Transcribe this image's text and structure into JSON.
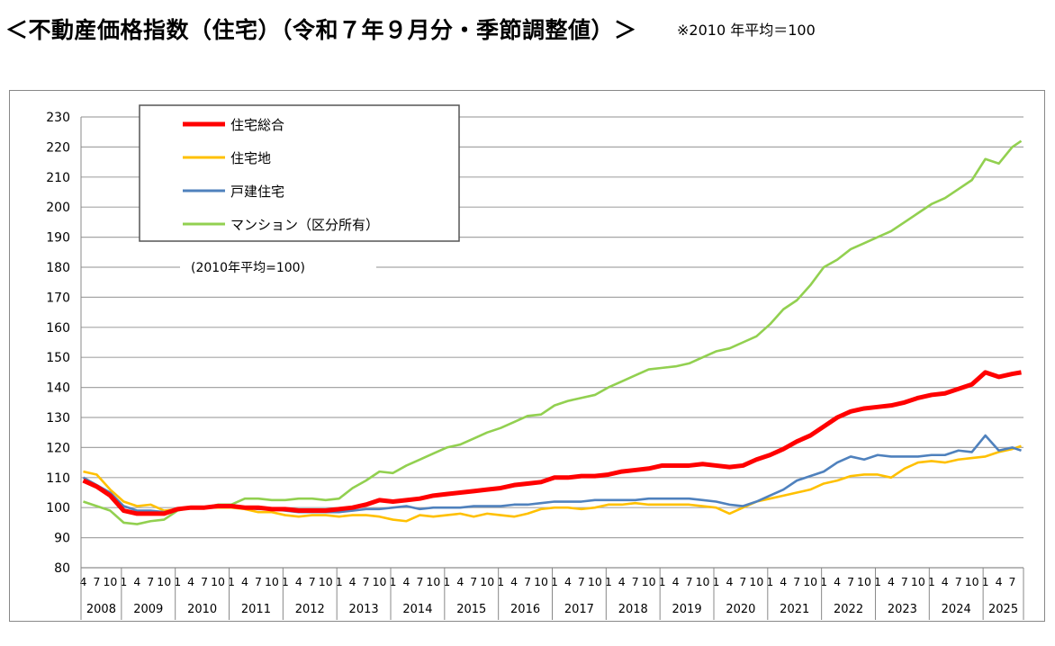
{
  "header": {
    "title": "＜不動産価格指数（住宅）（令和７年９月分・季節調整値）＞",
    "note": "※2010 年平均＝100"
  },
  "chart_data": {
    "type": "line",
    "title": "",
    "annotation": "(2010年平均=100)",
    "xlabel": "",
    "ylabel": "",
    "ylim": [
      80,
      230
    ],
    "y_ticks": [
      80,
      90,
      100,
      110,
      120,
      130,
      140,
      150,
      160,
      170,
      180,
      190,
      200,
      210,
      220,
      230
    ],
    "x_range": [
      "2008-04",
      "2025-09"
    ],
    "month_tick_labels": [
      "1",
      "4",
      "7",
      "10"
    ],
    "years": [
      "2008",
      "2009",
      "2010",
      "2011",
      "2012",
      "2013",
      "2014",
      "2015",
      "2016",
      "2017",
      "2018",
      "2019",
      "2020",
      "2021",
      "2022",
      "2023",
      "2024",
      "2025"
    ],
    "grid": true,
    "legend_position": "top-left",
    "x": [
      "2008-04",
      "2008-07",
      "2008-10",
      "2009-01",
      "2009-04",
      "2009-07",
      "2009-10",
      "2010-01",
      "2010-04",
      "2010-07",
      "2010-10",
      "2011-01",
      "2011-04",
      "2011-07",
      "2011-10",
      "2012-01",
      "2012-04",
      "2012-07",
      "2012-10",
      "2013-01",
      "2013-04",
      "2013-07",
      "2013-10",
      "2014-01",
      "2014-04",
      "2014-07",
      "2014-10",
      "2015-01",
      "2015-04",
      "2015-07",
      "2015-10",
      "2016-01",
      "2016-04",
      "2016-07",
      "2016-10",
      "2017-01",
      "2017-04",
      "2017-07",
      "2017-10",
      "2018-01",
      "2018-04",
      "2018-07",
      "2018-10",
      "2019-01",
      "2019-04",
      "2019-07",
      "2019-10",
      "2020-01",
      "2020-04",
      "2020-07",
      "2020-10",
      "2021-01",
      "2021-04",
      "2021-07",
      "2021-10",
      "2022-01",
      "2022-04",
      "2022-07",
      "2022-10",
      "2023-01",
      "2023-04",
      "2023-07",
      "2023-10",
      "2024-01",
      "2024-04",
      "2024-07",
      "2024-10",
      "2025-01",
      "2025-04",
      "2025-07",
      "2025-09"
    ],
    "series": [
      {
        "name": "住宅総合",
        "color": "#ff0000",
        "values": [
          109,
          107,
          104,
          99,
          98,
          98,
          98,
          99.5,
          100,
          100,
          100.5,
          100.5,
          100,
          100,
          99.5,
          99.5,
          99,
          99,
          99,
          99.5,
          100,
          101,
          102.5,
          102,
          102.5,
          103,
          104,
          104.5,
          105,
          105.5,
          106,
          106.5,
          107.5,
          108,
          108.5,
          110,
          110,
          110.5,
          110.5,
          111,
          112,
          112.5,
          113,
          114,
          114,
          114,
          114.5,
          114,
          113.5,
          114,
          116,
          117.5,
          119.5,
          122,
          124,
          127,
          130,
          132,
          133,
          133.5,
          134,
          135,
          136.5,
          137.5,
          138,
          139.5,
          141,
          145,
          143.5,
          144.5,
          145
        ]
      },
      {
        "name": "住宅地",
        "color": "#ffc000",
        "values": [
          112,
          111,
          106,
          102,
          100.5,
          101,
          99,
          99.5,
          100,
          100,
          100,
          100,
          99.5,
          98.5,
          98.5,
          97.5,
          97,
          97.5,
          97.5,
          97,
          97.5,
          97.5,
          97,
          96,
          95.5,
          97.5,
          97,
          97.5,
          98,
          97,
          98,
          97.5,
          97,
          98,
          99.5,
          100,
          100,
          99.5,
          100,
          101,
          101,
          101.5,
          101,
          101,
          101,
          101,
          100.5,
          100,
          98,
          100,
          102,
          103,
          104,
          105,
          106,
          108,
          109,
          110.5,
          111,
          111,
          110,
          113,
          115,
          115.5,
          115,
          116,
          116.5,
          117,
          118.5,
          119.5,
          120.5
        ]
      },
      {
        "name": "戸建住宅",
        "color": "#4f81bd",
        "values": [
          110,
          107.5,
          105,
          100.5,
          99,
          99,
          98.5,
          99.5,
          100,
          100,
          100.5,
          100.5,
          100,
          99.5,
          99.5,
          99,
          98.5,
          98.5,
          98.5,
          98.5,
          99,
          99.5,
          99.5,
          100,
          100.5,
          99.5,
          100,
          100,
          100,
          100.5,
          100.5,
          100.5,
          101,
          101,
          101.5,
          102,
          102,
          102,
          102.5,
          102.5,
          102.5,
          102.5,
          103,
          103,
          103,
          103,
          102.5,
          102,
          101,
          100.5,
          102,
          104,
          106,
          109,
          110.5,
          112,
          115,
          117,
          116,
          117.5,
          117,
          117,
          117,
          117.5,
          117.5,
          119,
          118.5,
          124,
          119,
          120,
          119
        ]
      },
      {
        "name": "マンション（区分所有）",
        "color": "#92d050",
        "values": [
          102,
          100.5,
          99,
          95,
          94.5,
          95.5,
          96,
          99,
          100,
          100,
          101,
          101,
          103,
          103,
          102.5,
          102.5,
          103,
          103,
          102.5,
          103,
          106.5,
          109,
          112,
          111.5,
          114,
          116,
          118,
          120,
          121,
          123,
          125,
          126.5,
          128.5,
          130.5,
          131,
          134,
          135.5,
          136.5,
          137.5,
          140,
          142,
          144,
          146,
          146.5,
          147,
          148,
          150,
          152,
          153,
          155,
          157,
          161,
          166,
          169,
          174,
          180,
          182.5,
          186,
          188,
          190,
          192,
          195,
          198,
          201,
          203,
          206,
          209,
          216,
          214.5,
          220,
          222
        ]
      }
    ]
  }
}
